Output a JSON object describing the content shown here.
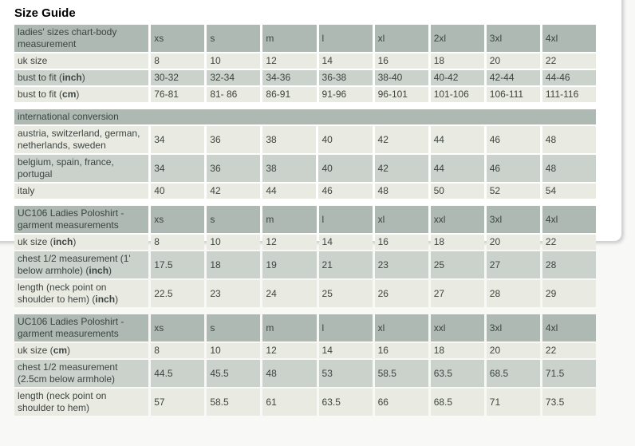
{
  "title": "Size Guide",
  "colors": {
    "header_bg": "#aeb9b3",
    "row_dark": "#cbd2cc",
    "row_light": "#e9ebe3",
    "text": "#3e4440",
    "title_color": "#000000",
    "page_bg": "#f8f8f6",
    "panel_bg": "#ffffff",
    "panel_border": "#d2d2d2"
  },
  "tables": [
    {
      "name": "body-measurement-table",
      "header": {
        "label": {
          "pre": "ladies' sizes chart-body measurement"
        },
        "cols": [
          "xs",
          "s",
          "m",
          "l",
          "xl",
          "2xl",
          "3xl",
          "4xl"
        ]
      },
      "rows": [
        {
          "shade": "light",
          "label": {
            "pre": "uk size"
          },
          "values": [
            "8",
            "10",
            "12",
            "14",
            "16",
            "18",
            "20",
            "22"
          ]
        },
        {
          "shade": "dark",
          "label": {
            "pre": "bust to fit (",
            "bold": "inch",
            "post": ")"
          },
          "values": [
            "30-32",
            "32-34",
            "34-36",
            "36-38",
            "38-40",
            "40-42",
            "42-44",
            "44-46"
          ]
        },
        {
          "shade": "light",
          "label": {
            "pre": "bust to fit (",
            "bold": "cm",
            "post": ")"
          },
          "values": [
            "76-81",
            "81- 86",
            "86-91",
            "91-96",
            "96-101",
            "101-106",
            "106-111",
            "111-116"
          ]
        }
      ]
    },
    {
      "name": "international-conversion-table",
      "full_header": "international conversion",
      "rows": [
        {
          "shade": "light",
          "label": {
            "pre": "austria, switzerland, german, netherlands, sweden"
          },
          "values": [
            "34",
            "36",
            "38",
            "40",
            "42",
            "44",
            "46",
            "48"
          ]
        },
        {
          "shade": "dark",
          "label": {
            "pre": "belgium, spain, france, portugal"
          },
          "values": [
            "34",
            "36",
            "38",
            "40",
            "42",
            "44",
            "46",
            "48"
          ]
        },
        {
          "shade": "light",
          "label": {
            "pre": "italy"
          },
          "values": [
            "40",
            "42",
            "44",
            "46",
            "48",
            "50",
            "52",
            "54"
          ]
        }
      ]
    },
    {
      "name": "garment-measurements-inch-table",
      "header": {
        "label": {
          "pre": "UC106 Ladies Poloshirt - garment measurements"
        },
        "cols": [
          "xs",
          "s",
          "m",
          "l",
          "xl",
          "xxl",
          "3xl",
          "4xl"
        ]
      },
      "rows": [
        {
          "shade": "light",
          "label": {
            "pre": "uk size (",
            "bold": "inch",
            "post": ")"
          },
          "values": [
            "8",
            "10",
            "12",
            "14",
            "16",
            "18",
            "20",
            "22"
          ]
        },
        {
          "shade": "dark",
          "label": {
            "pre": "chest 1/2 measurement (1' below armhole) (",
            "bold": "inch",
            "post": ")"
          },
          "values": [
            "17.5",
            "18",
            "19",
            "21",
            "23",
            "25",
            "27",
            "28"
          ]
        },
        {
          "shade": "light",
          "label": {
            "pre": "length (neck point on shoulder to hem) (",
            "bold": "inch",
            "post": ")"
          },
          "values": [
            "22.5",
            "23",
            "24",
            "25",
            "26",
            "27",
            "28",
            "29"
          ]
        }
      ]
    },
    {
      "name": "garment-measurements-cm-table",
      "header": {
        "label": {
          "pre": "UC106 Ladies Poloshirt - garment measurements"
        },
        "cols": [
          "xs",
          "s",
          "m",
          "l",
          "xl",
          "xxl",
          "3xl",
          "4xl"
        ]
      },
      "rows": [
        {
          "shade": "light",
          "label": {
            "pre": "uk size (",
            "bold": "cm",
            "post": ")"
          },
          "values": [
            "8",
            "10",
            "12",
            "14",
            "16",
            "18",
            "20",
            "22"
          ]
        },
        {
          "shade": "dark",
          "label": {
            "pre": "chest 1/2 measurement (2.5cm below armhole)"
          },
          "values": [
            "44.5",
            "45.5",
            "48",
            "53",
            "58.5",
            "63.5",
            "68.5",
            "71.5"
          ]
        },
        {
          "shade": "light",
          "label": {
            "pre": "length (neck point on shoulder to hem)"
          },
          "values": [
            "57",
            "58.5",
            "61",
            "63.5",
            "66",
            "68.5",
            "71",
            "73.5"
          ]
        }
      ]
    }
  ]
}
